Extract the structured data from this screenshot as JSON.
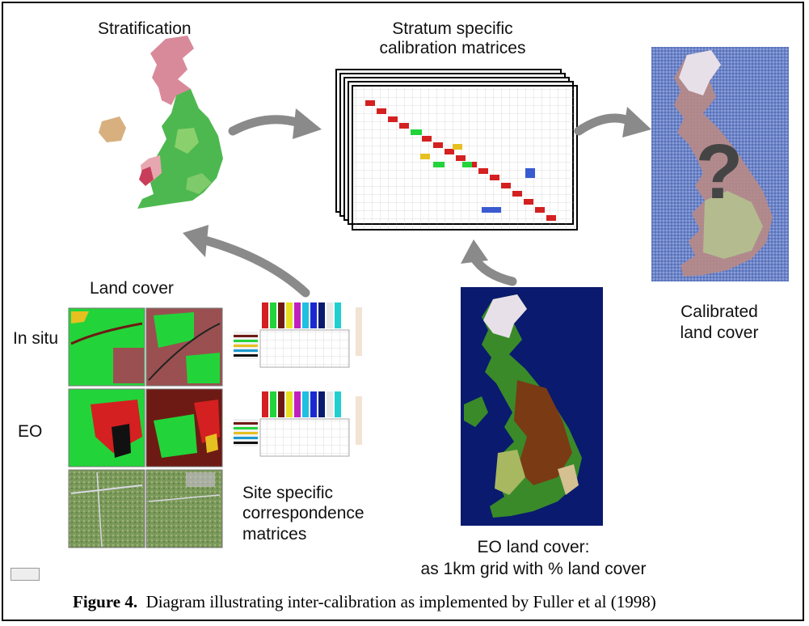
{
  "labels": {
    "stratification": "Stratification",
    "stratum_line1": "Stratum specific",
    "stratum_line2": "calibration matrices",
    "land_cover": "Land cover",
    "in_situ": "In situ",
    "eo": "EO",
    "site_line1": "Site specific",
    "site_line2": "correspondence",
    "site_line3": "matrices",
    "calibrated_line1": "Calibrated",
    "calibrated_line2": "land cover",
    "eo_lc_line1": "EO land cover:",
    "eo_lc_line2": "as 1km grid with % land cover",
    "question_mark": "?"
  },
  "caption": {
    "figure_label": "Figure 4.",
    "text": "Diagram illustrating inter-calibration as implemented by Fuller et al (1998)"
  },
  "colors": {
    "arrow": "#8a8a8a",
    "green": "#22d43a",
    "red": "#d42020",
    "maroon": "#6e1a14",
    "navy": "#0a1a6e",
    "pink": "#d98a9a"
  }
}
